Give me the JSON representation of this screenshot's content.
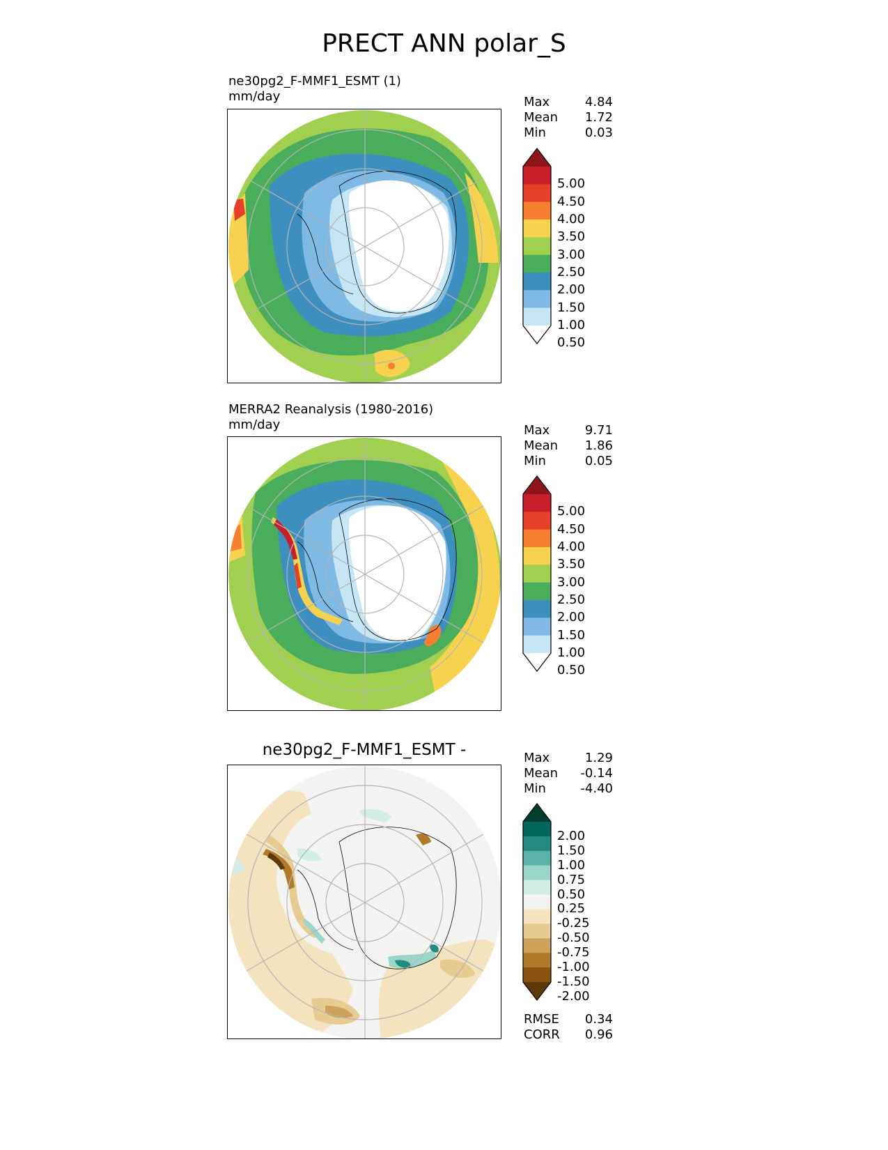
{
  "figure": {
    "title": "PRECT ANN polar_S"
  },
  "panels": [
    {
      "id": "test",
      "title": "ne30pg2_F-MMF1_ESMT (1)",
      "units": "mm/day",
      "stats": {
        "max_label": "Max",
        "max": "4.84",
        "mean_label": "Mean",
        "mean": "1.72",
        "min_label": "Min",
        "min": "0.03"
      }
    },
    {
      "id": "reference",
      "title": "MERRA2 Reanalysis (1980-2016)",
      "units": "mm/day",
      "stats": {
        "max_label": "Max",
        "max": "9.71",
        "mean_label": "Mean",
        "mean": "1.86",
        "min_label": "Min",
        "min": "0.05"
      }
    },
    {
      "id": "difference",
      "title": "ne30pg2_F-MMF1_ESMT -",
      "units": "",
      "stats": {
        "max_label": "Max",
        "max": "1.29",
        "mean_label": "Mean",
        "mean": "-0.14",
        "min_label": "Min",
        "min": "-4.40"
      },
      "footer": {
        "rmse_label": "RMSE",
        "rmse": "0.34",
        "corr_label": "CORR",
        "corr": "0.96"
      }
    }
  ],
  "colorbars": {
    "precip": {
      "levels": [
        "5.00",
        "4.50",
        "4.00",
        "3.50",
        "3.00",
        "2.50",
        "2.00",
        "1.50",
        "1.00",
        "0.50"
      ],
      "colors": [
        "#8e1519",
        "#c8202a",
        "#e6402b",
        "#f77f30",
        "#f7d24f",
        "#a1cf4f",
        "#4aad5b",
        "#3e8fc0",
        "#7fbae4",
        "#c6e6f6",
        "#ffffff"
      ]
    },
    "diff": {
      "levels": [
        "2.00",
        "1.50",
        "1.00",
        "0.75",
        "0.50",
        "0.25",
        "-0.25",
        "-0.50",
        "-0.75",
        "-1.00",
        "-1.50",
        "-2.00"
      ],
      "colors": [
        "#013e2f",
        "#02665a",
        "#238a7f",
        "#5bb3a8",
        "#99d6c9",
        "#d2ece6",
        "#f3f3f1",
        "#f4e3bf",
        "#e8cb90",
        "#cea25a",
        "#b07a2b",
        "#8a510f",
        "#5e3a09"
      ]
    }
  }
}
